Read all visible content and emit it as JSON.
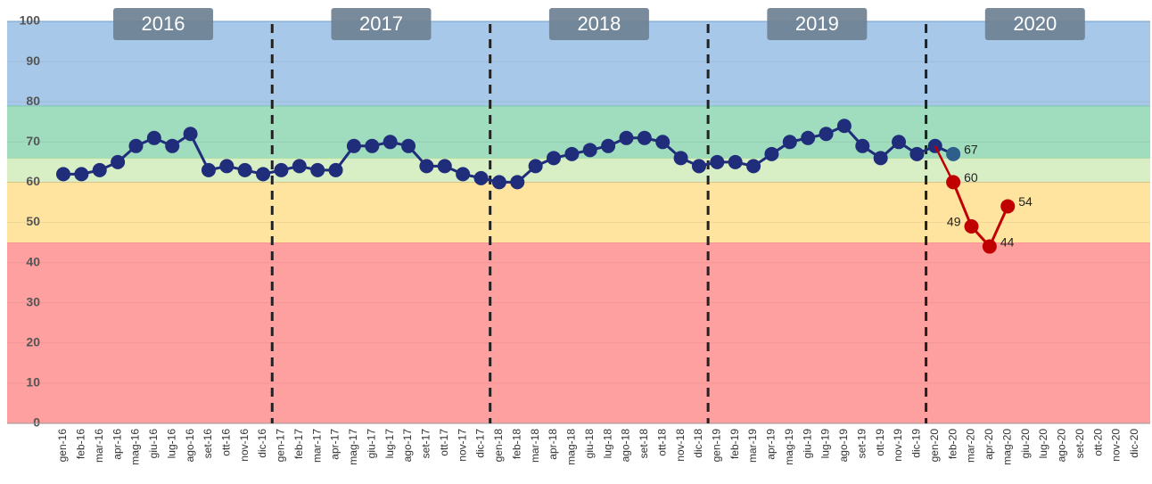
{
  "chart_data": {
    "type": "line",
    "categories": [
      "gen-16",
      "feb-16",
      "mar-16",
      "apr-16",
      "mag-16",
      "giu-16",
      "lug-16",
      "ago-16",
      "set-16",
      "ott-16",
      "nov-16",
      "dic-16",
      "gen-17",
      "feb-17",
      "mar-17",
      "apr-17",
      "mag-17",
      "giu-17",
      "lug-17",
      "ago-17",
      "set-17",
      "ott-17",
      "nov-17",
      "dic-17",
      "gen-18",
      "feb-18",
      "mar-18",
      "apr-18",
      "mag-18",
      "giu-18",
      "lug-18",
      "ago-18",
      "set-18",
      "ott-18",
      "nov-18",
      "dic-18",
      "gen-19",
      "feb-19",
      "mar-19",
      "apr-19",
      "mag-19",
      "giu-19",
      "lug-19",
      "ago-19",
      "set-19",
      "ott-19",
      "nov-19",
      "dic-19",
      "gen-20",
      "feb-20",
      "mar-20",
      "apr-20",
      "mag-20",
      "giu-20",
      "lug-20",
      "ago-20",
      "set-20",
      "ott-20",
      "nov-20",
      "dic-20"
    ],
    "years": [
      "2016",
      "2017",
      "2018",
      "2019",
      "2020"
    ],
    "series": [
      {
        "color": "#1f2d7a",
        "last_color": "#2e5f8a",
        "label_last": true,
        "values": [
          62,
          62,
          63,
          65,
          69,
          71,
          69,
          72,
          63,
          64,
          63,
          62,
          63,
          64,
          63,
          63,
          69,
          69,
          70,
          69,
          64,
          64,
          62,
          61,
          60,
          60,
          64,
          66,
          67,
          68,
          69,
          71,
          71,
          70,
          66,
          64,
          65,
          65,
          64,
          67,
          70,
          71,
          72,
          74,
          69,
          66,
          70,
          67,
          69,
          67,
          null,
          null,
          null,
          null,
          null,
          null,
          null,
          null,
          null,
          null
        ]
      },
      {
        "color": "#c00000",
        "labels": true,
        "join_previous": true,
        "values": [
          null,
          null,
          null,
          null,
          null,
          null,
          null,
          null,
          null,
          null,
          null,
          null,
          null,
          null,
          null,
          null,
          null,
          null,
          null,
          null,
          null,
          null,
          null,
          null,
          null,
          null,
          null,
          null,
          null,
          null,
          null,
          null,
          null,
          null,
          null,
          null,
          null,
          null,
          null,
          null,
          null,
          null,
          null,
          null,
          null,
          null,
          null,
          null,
          null,
          60,
          49,
          44,
          54,
          null,
          null,
          null,
          null,
          null,
          null,
          null
        ]
      }
    ],
    "bands": [
      {
        "from": 0,
        "to": 45,
        "color": "#ffa0a0",
        "edge": "#f08080"
      },
      {
        "from": 45,
        "to": 60,
        "color": "#ffe4a0",
        "edge": "#f0b060"
      },
      {
        "from": 60,
        "to": 66,
        "color": "#d8efc6",
        "edge": "#b0d890"
      },
      {
        "from": 66,
        "to": 79,
        "color": "#a0dcbe",
        "edge": "#60c090"
      },
      {
        "from": 79,
        "to": 100,
        "color": "#a7c8e8",
        "edge": "#7aa8d8"
      }
    ],
    "ylim": [
      0,
      100
    ],
    "yticks": [
      0,
      10,
      20,
      30,
      40,
      50,
      60,
      70,
      80,
      90,
      100
    ]
  }
}
